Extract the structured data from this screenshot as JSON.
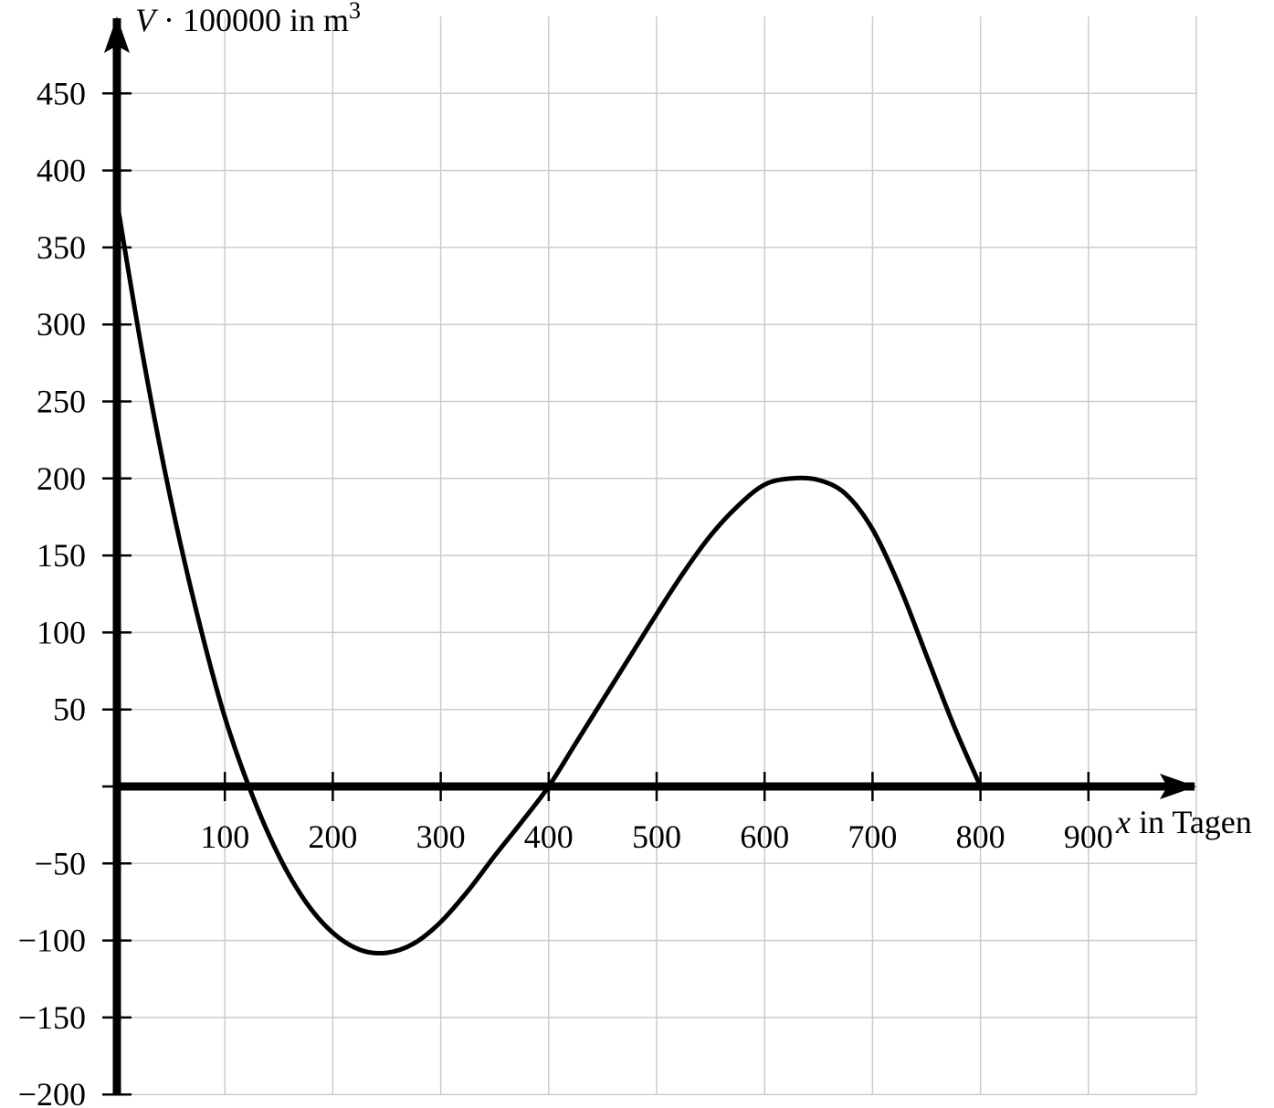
{
  "chart_data": {
    "type": "line",
    "xlabel_var": "x",
    "xlabel_rest": " in Tagen",
    "ylabel_var": "V",
    "ylabel_rest": " · 100000 in m",
    "ylabel_sup": "3",
    "xlim": [
      0,
      1000
    ],
    "ylim": [
      -200,
      500
    ],
    "x_ticks": [
      100,
      200,
      300,
      400,
      500,
      600,
      700,
      800,
      900
    ],
    "y_ticks": [
      -200,
      -150,
      -100,
      -50,
      50,
      100,
      150,
      200,
      250,
      300,
      350,
      400,
      450
    ],
    "grid": true,
    "grid_color": "#cccccc",
    "line_color": "#000000",
    "series": [
      {
        "x": [
          0,
          25,
          50,
          75,
          100,
          125,
          150,
          175,
          200,
          225,
          250,
          275,
          300,
          325,
          350,
          375,
          400,
          425,
          450,
          475,
          500,
          525,
          550,
          575,
          600,
          625,
          650,
          675,
          700,
          725,
          750,
          775,
          800
        ],
        "y": [
          380,
          276,
          186,
          110,
          45,
          -5,
          -45,
          -75,
          -95,
          -106,
          -108,
          -102,
          -88,
          -68,
          -45,
          -23,
          0,
          28,
          56,
          84,
          112,
          139,
          163,
          182,
          196,
          200,
          199,
          190,
          167,
          130,
          85,
          40,
          0
        ]
      }
    ]
  }
}
